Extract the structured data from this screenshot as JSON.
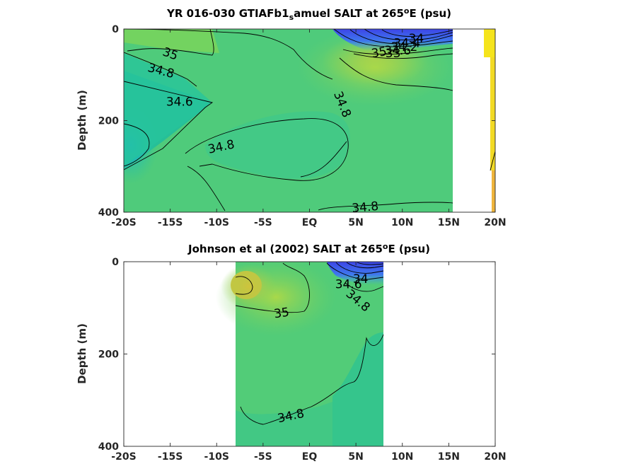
{
  "chart_data": [
    {
      "type": "heatmap",
      "title_parts": [
        "YR 016-030 GTIAFb1",
        "s",
        "amuel SALT at 265",
        "o",
        "E (psu)"
      ],
      "ylabel": "Depth (m)",
      "x_ticks": [
        "-20S",
        "-15S",
        "-10S",
        "-5S",
        "EQ",
        "5N",
        "10N",
        "15N",
        "20N"
      ],
      "x_values": [
        -20,
        -15,
        -10,
        -5,
        0,
        5,
        10,
        15,
        20
      ],
      "xlim": [
        -20,
        20
      ],
      "y_ticks": [
        "0",
        "200",
        "400"
      ],
      "y_values": [
        0,
        200,
        400
      ],
      "ylim": [
        0,
        400
      ],
      "y_reversed": true,
      "data_x_extent": [
        -20,
        15.5
      ],
      "contour_labels": [
        {
          "text": "35",
          "x": -15,
          "y": 55,
          "angle": 20
        },
        {
          "text": "34.8",
          "x": -16,
          "y": 92,
          "angle": 15
        },
        {
          "text": "34.6",
          "x": -14,
          "y": 160,
          "angle": 0
        },
        {
          "text": "34.8",
          "x": -9.5,
          "y": 258,
          "angle": -12
        },
        {
          "text": "34.8",
          "x": 3.5,
          "y": 165,
          "angle": 68
        },
        {
          "text": "34.8",
          "x": 6,
          "y": 390,
          "angle": -5
        },
        {
          "text": "34",
          "x": 11.5,
          "y": 22,
          "angle": 0
        },
        {
          "text": "34.4",
          "x": 10.5,
          "y": 32,
          "angle": 0
        },
        {
          "text": "34.2",
          "x": 10.2,
          "y": 40,
          "angle": 0
        },
        {
          "text": "34.6",
          "x": 9.5,
          "y": 48,
          "angle": 0
        },
        {
          "text": "35",
          "x": 7.5,
          "y": 52,
          "angle": -10
        },
        {
          "text": "33",
          "x": 9,
          "y": 54,
          "angle": 0
        }
      ]
    },
    {
      "type": "heatmap",
      "title_parts": [
        "Johnson et al (2002) SALT at 265",
        "o",
        "E (psu)"
      ],
      "ylabel": "Depth (m)",
      "x_ticks": [
        "-20S",
        "-15S",
        "-10S",
        "-5S",
        "EQ",
        "5N",
        "10N",
        "15N",
        "20N"
      ],
      "x_values": [
        -20,
        -15,
        -10,
        -5,
        0,
        5,
        10,
        15,
        20
      ],
      "xlim": [
        -20,
        20
      ],
      "y_ticks": [
        "0",
        "200",
        "400"
      ],
      "y_values": [
        0,
        200,
        400
      ],
      "ylim": [
        0,
        400
      ],
      "y_reversed": true,
      "data_x_extent": [
        -8,
        8
      ],
      "contour_labels": [
        {
          "text": "35",
          "x": -3,
          "y": 112,
          "angle": -8
        },
        {
          "text": "34.8",
          "x": -2,
          "y": 335,
          "angle": -12
        },
        {
          "text": "34.6",
          "x": 4.2,
          "y": 50,
          "angle": 0
        },
        {
          "text": "34",
          "x": 5.5,
          "y": 38,
          "angle": 0
        },
        {
          "text": "34.8",
          "x": 5.2,
          "y": 85,
          "angle": 40
        }
      ]
    }
  ],
  "colors": {
    "fresh": "#3a54e8",
    "low": "#1fb8c8",
    "mid": "#28c39a",
    "base": "#4dcc7a",
    "high": "#9ad64e",
    "salty": "#d6c43a",
    "strip_yellow": "#f5e41c",
    "strip_orange": "#f0b43a"
  }
}
